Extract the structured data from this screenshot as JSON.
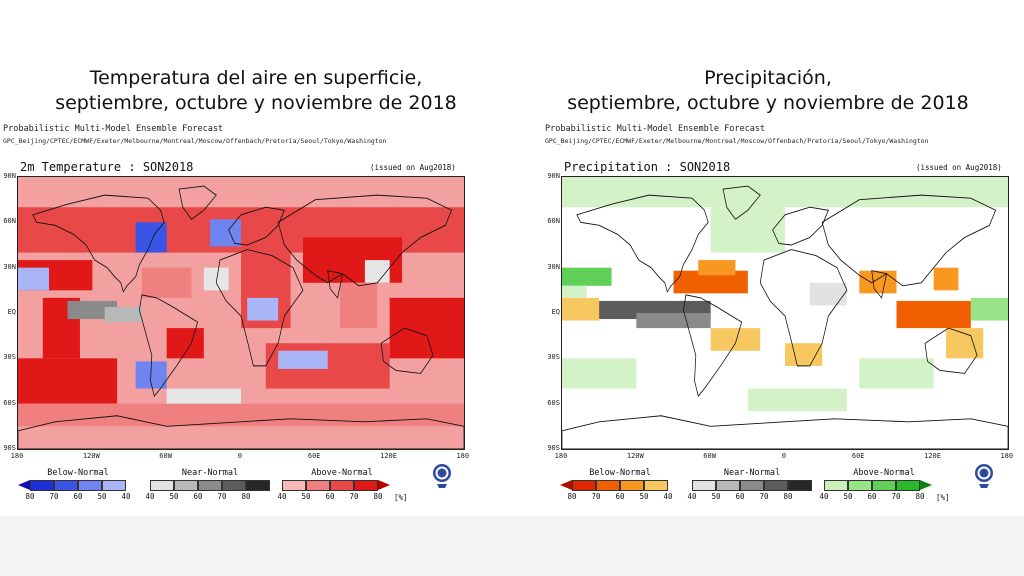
{
  "left": {
    "title_line1": "Temperatura del aire en superficie,",
    "title_line2": "septiembre, octubre y noviembre de 2018",
    "ensemble_label": "Probabilistic Multi-Model Ensemble Forecast",
    "centres": "GPC_Beijing/CPTEC/ECMWF/Exeter/Melbourne/Montreal/Moscow/Offenbach/Pretoria/Seoul/Tokyo/Washington",
    "variable_title": "2m Temperature : SON2018",
    "issued": "(issued on Aug2018)",
    "legend": [
      {
        "title": "Below-Normal",
        "ticks": [
          "80",
          "70",
          "60",
          "50",
          "40"
        ],
        "colors": [
          "#1f2fd8",
          "#3a55e6",
          "#6f84ee",
          "#a9b5f6"
        ],
        "arrow": "#1010b0"
      },
      {
        "title": "Near-Normal",
        "ticks": [
          "40",
          "50",
          "60",
          "70",
          "80"
        ],
        "colors": [
          "#e2e2e2",
          "#b8b8b8",
          "#8a8a8a",
          "#5c5c5c",
          "#262626"
        ]
      },
      {
        "title": "Above-Normal",
        "ticks": [
          "40",
          "50",
          "60",
          "70",
          "80"
        ],
        "colors": [
          "#f7b8b8",
          "#f08080",
          "#e84848",
          "#e01818"
        ],
        "arrow": "#b80000"
      }
    ],
    "unit": "[%]",
    "palette": {
      "above": "#e01818",
      "above_light": "#f2a0a0",
      "below": "#3a55e6",
      "below_light": "#a9b5f6",
      "near": "#9a9a9a",
      "near_light": "#e6e6e6"
    }
  },
  "right": {
    "title_line1": "Precipitación,",
    "title_line2": "septiembre, octubre y noviembre de 2018",
    "ensemble_label": "Probabilistic Multi-Model Ensemble Forecast",
    "centres": "GPC_Beijing/CPTEC/ECMWF/Exeter/Melbourne/Montreal/Moscow/Offenbach/Pretoria/Seoul/Tokyo/Washington",
    "variable_title": "Precipitation : SON2018",
    "issued": "(issued on Aug2018)",
    "legend": [
      {
        "title": "Below-Normal",
        "ticks": [
          "80",
          "70",
          "60",
          "50",
          "40"
        ],
        "colors": [
          "#e02800",
          "#f06000",
          "#f89820",
          "#f8c860"
        ],
        "arrow": "#b01000"
      },
      {
        "title": "Near-Normal",
        "ticks": [
          "40",
          "50",
          "60",
          "70",
          "80"
        ],
        "colors": [
          "#e2e2e2",
          "#b8b8b8",
          "#8a8a8a",
          "#5c5c5c",
          "#262626"
        ]
      },
      {
        "title": "Above-Normal",
        "ticks": [
          "40",
          "50",
          "60",
          "70",
          "80"
        ],
        "colors": [
          "#c8f0b8",
          "#98e288",
          "#60d058",
          "#28b828"
        ],
        "arrow": "#108010"
      }
    ],
    "unit": "[%]",
    "palette": {
      "above": "#5fcf55",
      "above_light": "#d4f2c8",
      "below": "#f07a00",
      "below_light": "#f8d278",
      "near": "#555555",
      "near_light": "#e6e6e6"
    }
  },
  "axes": {
    "lat_labels": [
      "90N",
      "60N",
      "30N",
      "EQ",
      "30S",
      "60S",
      "90S"
    ],
    "lon_labels": [
      "180",
      "120W",
      "60W",
      "0",
      "60E",
      "120E",
      "180"
    ]
  },
  "logo": {
    "name": "wmo-logo"
  }
}
